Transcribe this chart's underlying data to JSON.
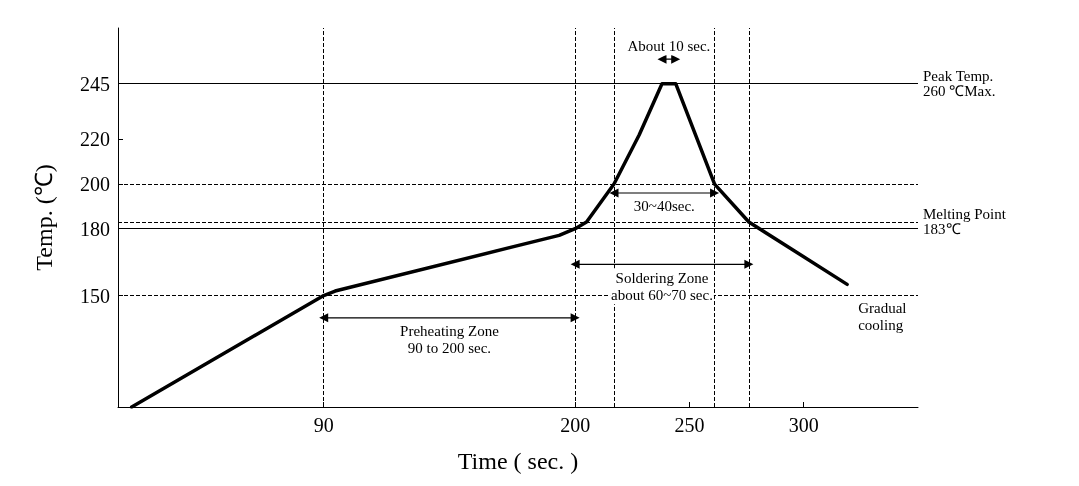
{
  "chart_data": {
    "type": "line",
    "xlabel": "Time ( sec. )",
    "ylabel": "Temp. (℃)",
    "x": [
      6,
      90,
      95,
      193,
      200,
      205,
      217,
      228,
      238,
      244,
      261,
      276,
      319
    ],
    "series": [
      {
        "color": "#000000",
        "values": [
          100,
          150,
          152,
          177,
          180,
          183,
          200,
          222,
          245,
          245,
          200,
          183,
          155
        ]
      },
      {
        "color": "#000000",
        "x": [
          90,
          200
        ],
        "values": [
          140,
          140
        ],
        "marker": "triangle"
      },
      {
        "color": "#000000",
        "x": [
          200,
          276
        ],
        "values": [
          164,
          164
        ],
        "marker": "triangle"
      },
      {
        "color": "#000000",
        "x": [
          217,
          261
        ],
        "values": [
          196,
          196
        ],
        "marker": "triangle"
      },
      {
        "color": "#000000",
        "x": [
          238,
          244
        ],
        "values": [
          256,
          256
        ],
        "marker": "triangle"
      }
    ],
    "xlim": [
      0,
      350
    ],
    "ylim": [
      100,
      270
    ],
    "xticks": [
      90,
      200,
      250,
      300
    ],
    "yticks": [
      150,
      180,
      200,
      220,
      245
    ],
    "grid": false,
    "marker": "none",
    "line_style": "solid",
    "ref_lines": [
      {
        "axis": "y",
        "value": 245,
        "label": "Peak Temp.\n260 ℃Max.",
        "line_style": "solid"
      },
      {
        "axis": "y",
        "value": 200,
        "label": null,
        "line_style": "dashed"
      },
      {
        "axis": "y",
        "value": 183,
        "label": "Melting Point\n183℃",
        "line_style": "dashed"
      },
      {
        "axis": "y",
        "value": 180,
        "label": null,
        "line_style": "solid"
      },
      {
        "axis": "y",
        "value": 150,
        "label": null,
        "line_style": "dashed"
      },
      {
        "axis": "x",
        "value": 90,
        "label": null,
        "line_style": "dashed"
      },
      {
        "axis": "x",
        "value": 200,
        "label": null,
        "line_style": "dashed"
      },
      {
        "axis": "x",
        "value": 217,
        "label": null,
        "line_style": "dashed"
      },
      {
        "axis": "x",
        "value": 261,
        "label": null,
        "line_style": "dashed"
      },
      {
        "axis": "x",
        "value": 276,
        "label": null,
        "line_style": "dashed"
      }
    ],
    "annotations": [
      "Preheating Zone\n90 to 200 sec.",
      "Soldering Zone\nabout 60~70 sec.",
      "30~40sec.",
      "About 10 sec.",
      "Gradual\ncooling"
    ]
  }
}
